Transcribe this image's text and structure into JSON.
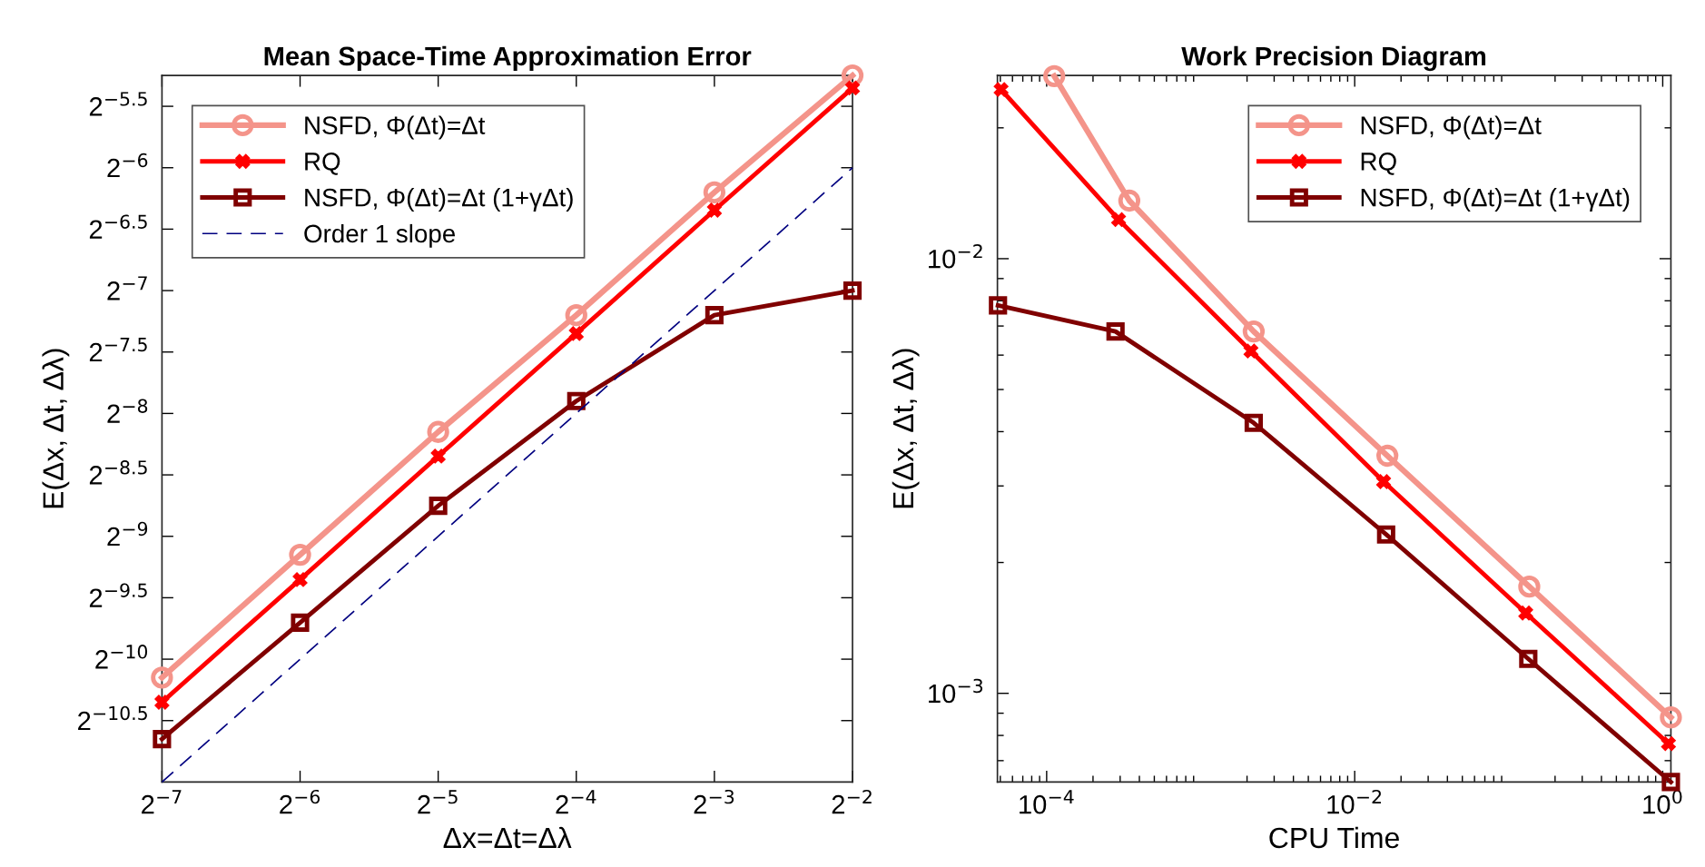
{
  "chart_data": [
    {
      "type": "line",
      "title": "Mean Space-Time Approximation Error",
      "xlabel": "Δx=Δt=Δλ",
      "ylabel": "E(Δx, Δt, Δλ)",
      "log": "xy",
      "grid": false,
      "legend": "top left",
      "xlim": [
        0.0078125,
        0.25
      ],
      "ylim": [
        0.00048828125,
        0.0263
      ],
      "xticks": [
        {
          "value": 0.0078125,
          "label": "2$^{−7}$"
        },
        {
          "value": 0.015625,
          "label": "2$^{−6}$"
        },
        {
          "value": 0.03125,
          "label": "2$^{−5}$"
        },
        {
          "value": 0.0625,
          "label": "2$^{−4}$"
        },
        {
          "value": 0.125,
          "label": "2$^{−3}$"
        },
        {
          "value": 0.25,
          "label": "2$^{−2}$"
        }
      ],
      "yticks": [
        {
          "value": 0.00069053,
          "label": "2$^{−10.5}$"
        },
        {
          "value": 0.0009765625,
          "label": "2$^{−10}$"
        },
        {
          "value": 0.0013811,
          "label": "2$^{−9.5}$"
        },
        {
          "value": 0.001953125,
          "label": "2$^{−9}$"
        },
        {
          "value": 0.0027621,
          "label": "2$^{−8.5}$"
        },
        {
          "value": 0.00390625,
          "label": "2$^{−8}$"
        },
        {
          "value": 0.0055243,
          "label": "2$^{−7.5}$"
        },
        {
          "value": 0.0078125,
          "label": "2$^{−7}$"
        },
        {
          "value": 0.011049,
          "label": "2$^{−6.5}$"
        },
        {
          "value": 0.015625,
          "label": "2$^{−6}$"
        },
        {
          "value": 0.022097,
          "label": "2$^{−5.5}$"
        }
      ],
      "series": [
        {
          "name": "NSFD, Φ(Δt)=Δt",
          "color": "#f4948a",
          "marker": "circle",
          "line_style": "solid",
          "x": [
            0.0078125,
            0.015625,
            0.03125,
            0.0625,
            0.125,
            0.25
          ],
          "values": [
            0.00088,
            0.00176,
            0.00352,
            0.0068,
            0.0136,
            0.0263
          ]
        },
        {
          "name": "RQ",
          "color": "#ff0000",
          "marker": "cross",
          "line_style": "solid",
          "x": [
            0.0078125,
            0.015625,
            0.03125,
            0.0625,
            0.125,
            0.25
          ],
          "values": [
            0.000766,
            0.00153,
            0.00307,
            0.00613,
            0.0123,
            0.0245
          ]
        },
        {
          "name": "NSFD, Φ(Δt)=Δt (1+γΔt)",
          "color": "#800000",
          "marker": "square",
          "line_style": "solid",
          "x": [
            0.0078125,
            0.015625,
            0.03125,
            0.0625,
            0.125,
            0.25
          ],
          "values": [
            0.000622,
            0.0012,
            0.00232,
            0.00419,
            0.0068,
            0.00781
          ]
        },
        {
          "name": "Order 1 slope",
          "color": "#000080",
          "marker": "none",
          "line_style": "dashed",
          "x": [
            0.0078125,
            0.25
          ],
          "values": [
            0.00048828125,
            0.015625
          ]
        }
      ]
    },
    {
      "type": "line",
      "title": "Work Precision Diagram",
      "xlabel": "CPU Time",
      "ylabel": "E(Δx, Δt, Δλ)",
      "log": "xy",
      "grid": false,
      "legend": "top right",
      "xlim": [
        4.79e-05,
        1.13
      ],
      "ylim": [
        0.000625,
        0.0264
      ],
      "xticks": [
        {
          "value": 0.0001,
          "label": "10$^{−4}$"
        },
        {
          "value": 0.01,
          "label": "10$^{−2}$"
        },
        {
          "value": 1,
          "label": "10$^{0}$"
        }
      ],
      "yticks": [
        {
          "value": 0.001,
          "label": "10$^{−3}$"
        },
        {
          "value": 0.01,
          "label": "10$^{−2}$"
        }
      ],
      "series": [
        {
          "name": "NSFD, Φ(Δt)=Δt",
          "color": "#f4948a",
          "marker": "circle",
          "line_style": "solid",
          "x": [
            0.000112,
            0.000344,
            0.00221,
            0.0163,
            0.136,
            1.13
          ],
          "values": [
            0.0263,
            0.0136,
            0.0068,
            0.00352,
            0.00176,
            0.00088
          ]
        },
        {
          "name": "RQ",
          "color": "#ff0000",
          "marker": "cross",
          "line_style": "solid",
          "x": [
            5.06e-05,
            0.000293,
            0.00212,
            0.0154,
            0.129,
            1.09
          ],
          "values": [
            0.0245,
            0.0123,
            0.00613,
            0.00307,
            0.00153,
            0.000766
          ]
        },
        {
          "name": "NSFD, Φ(Δt)=Δt (1+γΔt)",
          "color": "#800000",
          "marker": "square",
          "line_style": "solid",
          "x": [
            4.83e-05,
            0.00028,
            0.00221,
            0.016,
            0.134,
            1.13
          ],
          "values": [
            0.00781,
            0.0068,
            0.00419,
            0.00232,
            0.0012,
            0.000625
          ]
        }
      ]
    }
  ]
}
